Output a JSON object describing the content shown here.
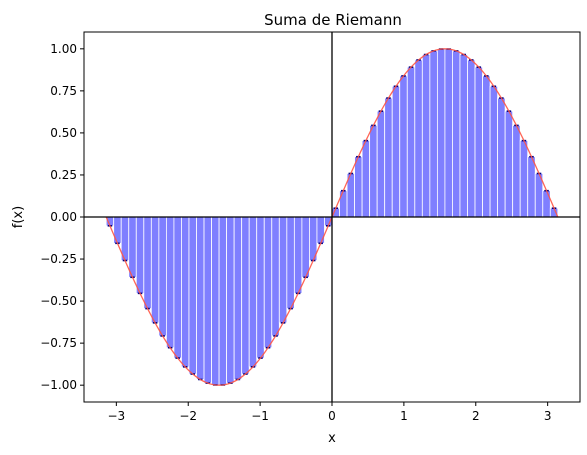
{
  "chart_data": {
    "type": "bar",
    "title": "Suma de Riemann",
    "xlabel": "x",
    "ylabel": "f(x)",
    "xlim": [
      -3.45,
      3.45
    ],
    "ylim": [
      -1.1,
      1.1
    ],
    "x_ticks": [
      {
        "value": -3,
        "label": "−3"
      },
      {
        "value": -2,
        "label": "−2"
      },
      {
        "value": -1,
        "label": "−1"
      },
      {
        "value": 0,
        "label": "0"
      },
      {
        "value": 1,
        "label": "1"
      },
      {
        "value": 2,
        "label": "2"
      },
      {
        "value": 3,
        "label": "3"
      }
    ],
    "y_ticks": [
      {
        "value": -1.0,
        "label": "−1.00"
      },
      {
        "value": -0.75,
        "label": "−0.75"
      },
      {
        "value": -0.5,
        "label": "−0.50"
      },
      {
        "value": -0.25,
        "label": "−0.25"
      },
      {
        "value": 0.0,
        "label": "0.00"
      },
      {
        "value": 0.25,
        "label": "0.25"
      },
      {
        "value": 0.5,
        "label": "0.50"
      },
      {
        "value": 0.75,
        "label": "0.75"
      },
      {
        "value": 1.0,
        "label": "1.00"
      }
    ],
    "grid": false,
    "function": "sin(x)",
    "interval": [
      -3.1416,
      3.1416
    ],
    "rectangles": 60,
    "sample_point": "midpoint",
    "bar_edges": [
      -3.1416,
      -3.0369,
      -2.9322,
      -2.8274,
      -2.7227,
      -2.618,
      -2.5133,
      -2.4086,
      -2.3038,
      -2.1991,
      -2.0944,
      -1.9897,
      -1.885,
      -1.7802,
      -1.6755,
      -1.5708,
      -1.4661,
      -1.3614,
      -1.2566,
      -1.1519,
      -1.0472,
      -0.9425,
      -0.8378,
      -0.733,
      -0.6283,
      -0.5236,
      -0.4189,
      -0.3142,
      -0.2094,
      -0.1047,
      0.0,
      0.1047,
      0.2094,
      0.3142,
      0.4189,
      0.5236,
      0.6283,
      0.733,
      0.8378,
      0.9425,
      1.0472,
      1.1519,
      1.2566,
      1.3614,
      1.4661,
      1.5708,
      1.6755,
      1.7802,
      1.885,
      1.9897,
      2.0944,
      2.1991,
      2.3038,
      2.4086,
      2.5133,
      2.618,
      2.7227,
      2.8274,
      2.9322,
      3.0369,
      3.1416
    ],
    "bar_heights": [
      -0.0523,
      -0.1564,
      -0.2588,
      -0.3584,
      -0.454,
      -0.5446,
      -0.6293,
      -0.7071,
      -0.7771,
      -0.8387,
      -0.891,
      -0.9336,
      -0.9659,
      -0.9877,
      -0.9986,
      -0.9986,
      -0.9877,
      -0.9659,
      -0.9336,
      -0.891,
      -0.8387,
      -0.7771,
      -0.7071,
      -0.6293,
      -0.5446,
      -0.454,
      -0.3584,
      -0.2588,
      -0.1564,
      -0.0523,
      0.0523,
      0.1564,
      0.2588,
      0.3584,
      0.454,
      0.5446,
      0.6293,
      0.7071,
      0.7771,
      0.8387,
      0.891,
      0.9336,
      0.9659,
      0.9877,
      0.9986,
      0.9986,
      0.9877,
      0.9659,
      0.9336,
      0.891,
      0.8387,
      0.7771,
      0.7071,
      0.6293,
      0.5446,
      0.454,
      0.3584,
      0.2588,
      0.1564,
      0.0523
    ],
    "colors": {
      "bar_fill": "#7f7fff",
      "bar_edge": "#ffffff",
      "sample_marker": "#000080",
      "curve": "#ff5544",
      "zero_lines": "#000000"
    }
  }
}
